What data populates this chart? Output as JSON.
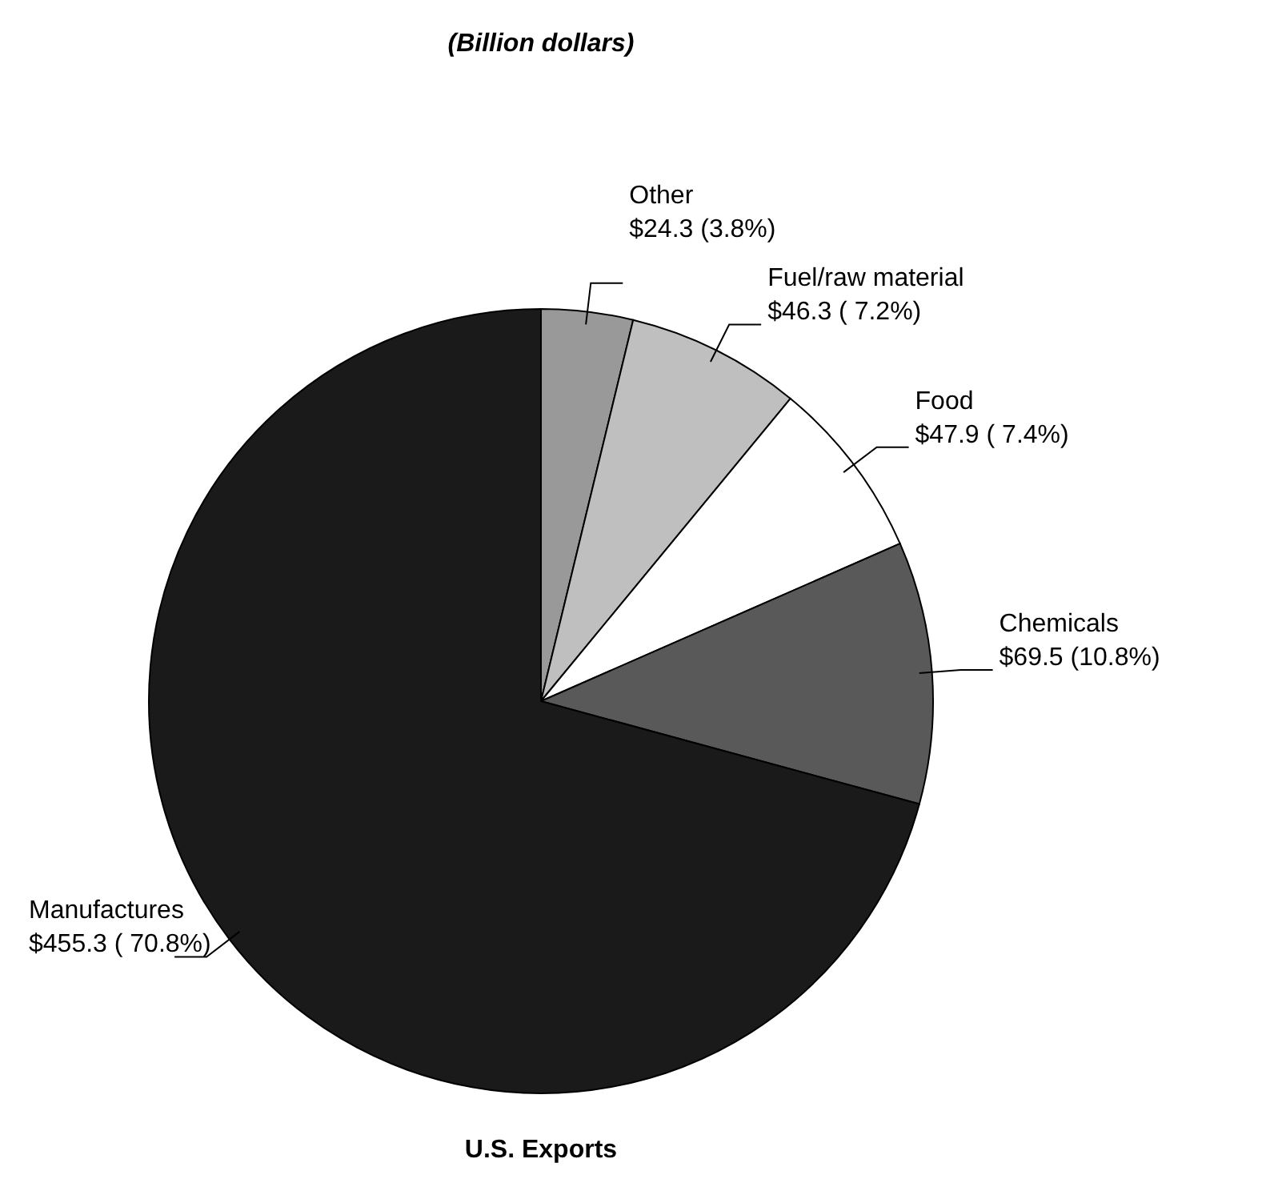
{
  "chart_data": {
    "type": "pie",
    "title": "(Billion dollars)",
    "xlabel": "U.S. Exports",
    "categories": [
      "Other",
      "Fuel/raw material",
      "Food",
      "Chemicals",
      "Manufactures"
    ],
    "values": [
      24.3,
      46.3,
      47.9,
      69.5,
      455.3
    ],
    "value_labels": [
      "$24.3 (3.8%)",
      "$46.3 ( 7.2%)",
      "$47.9 ( 7.4%)",
      "$69.5 (10.8%)",
      "$455.3 ( 70.8%)"
    ],
    "colors": [
      "#999999",
      "#bfbfbf",
      "#ffffff",
      "#595959",
      "#1a1a1a"
    ]
  }
}
